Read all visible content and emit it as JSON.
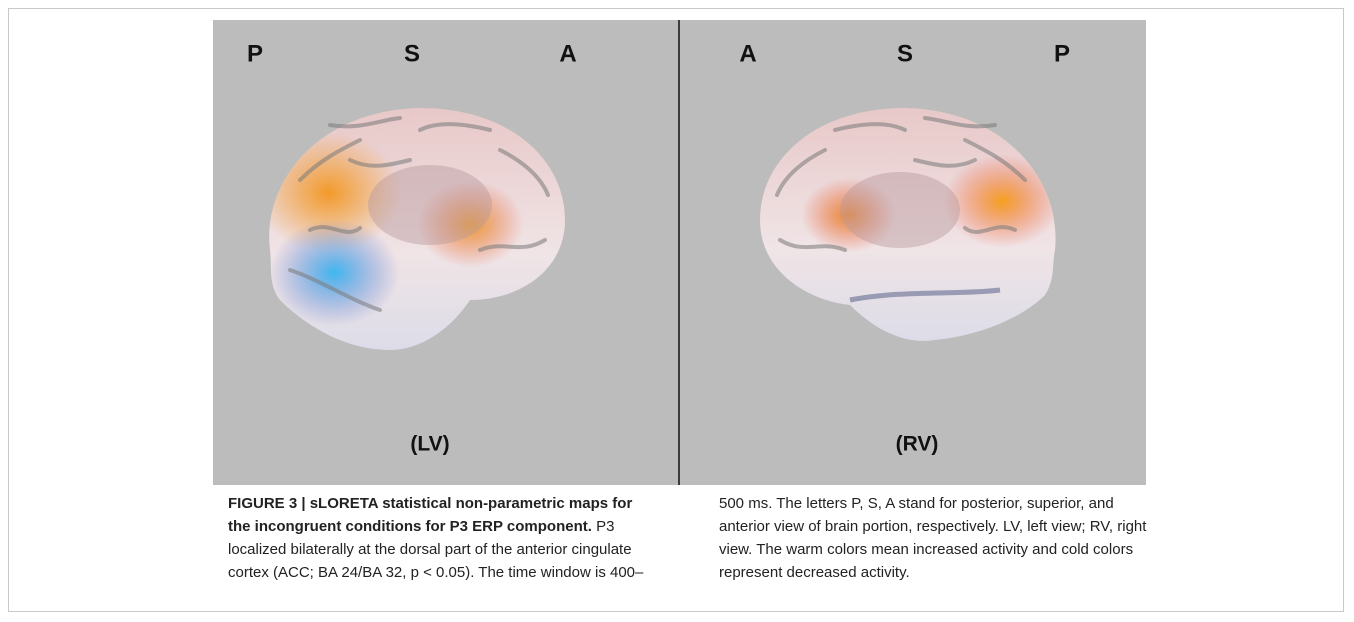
{
  "figure": {
    "left_panel": {
      "labels": [
        "P",
        "S",
        "A"
      ],
      "view": "(LV)"
    },
    "right_panel": {
      "labels": [
        "A",
        "S",
        "P"
      ],
      "view": "(RV)"
    },
    "caption": {
      "label": "FIGURE 3 | sLORETA statistical non-parametric maps for the incongruent conditions for P3 ERP component.",
      "text": "P3 localized bilaterally at the dorsal part of the anterior cingulate cortex (ACC; BA 24/BA 32, p < 0.05). The time window is 400–500 ms. The letters P, S, A stand for posterior, superior, and anterior view of brain portion, respectively. LV, left view; RV, right view. The warm colors mean increased activity and cold colors represent decreased activity."
    }
  }
}
